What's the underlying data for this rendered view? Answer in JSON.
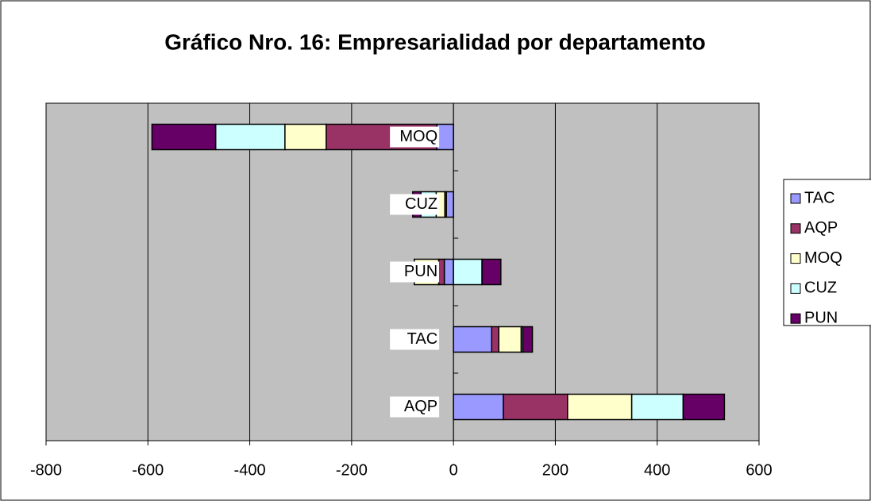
{
  "chart_data": {
    "type": "bar",
    "orientation": "horizontal",
    "stacked": true,
    "title": "Gráfico Nro. 16: Empresarialidad por departamento",
    "categories": [
      "AQP",
      "TAC",
      "PUN",
      "CUZ",
      "MOQ"
    ],
    "series": [
      {
        "name": "TAC",
        "color": "#9999ff",
        "values": [
          98,
          75,
          -18,
          -14,
          -33
        ]
      },
      {
        "name": "AQP",
        "color": "#993366",
        "values": [
          126,
          14,
          -11,
          -3,
          -217
        ]
      },
      {
        "name": "MOQ",
        "color": "#ffffcc",
        "values": [
          126,
          44,
          -48,
          -17,
          -81
        ]
      },
      {
        "name": "CUZ",
        "color": "#ccffff",
        "values": [
          101,
          3,
          56,
          -30,
          -136
        ]
      },
      {
        "name": "PUN",
        "color": "#660066",
        "values": [
          81,
          19,
          37,
          -16,
          -125
        ]
      }
    ],
    "xlim": [
      -800,
      600
    ],
    "xticks": [
      -800,
      -600,
      -400,
      -200,
      0,
      200,
      400,
      600
    ],
    "grid": true,
    "legend": "right",
    "background": "#c0c0c0"
  }
}
